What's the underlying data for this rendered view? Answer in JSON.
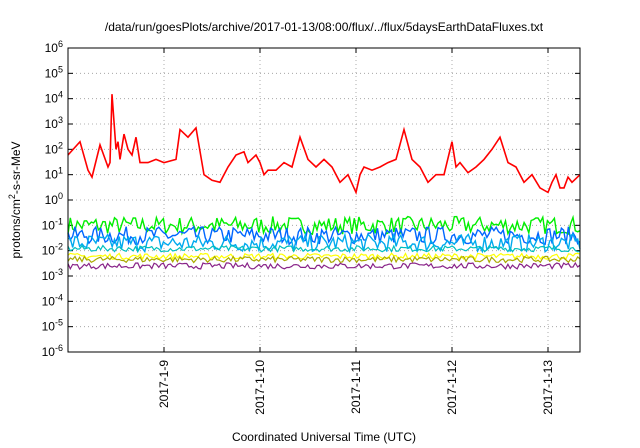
{
  "chart_data": {
    "type": "line",
    "title": "/data/run/goesPlots/archive/2017-01-13/08:00/flux/../flux/5daysEarthDataFluxes.txt",
    "xlabel": "Coordinated Universal Time (UTC)",
    "ylabel_parts": {
      "pre": "protons/cm",
      "sup": "2",
      "post": "-s-sr-MeV"
    },
    "y_scale": "log",
    "ylim": [
      1e-06,
      1000000.0
    ],
    "xlim": [
      "2017-01-08 00:00",
      "2017-01-13 08:00"
    ],
    "grid": true,
    "x_ticks": [
      "2017-1-9",
      "2017-1-10",
      "2017-1-11",
      "2017-1-12",
      "2017-1-13"
    ],
    "y_ticks": [
      {
        "base": "10",
        "exp": "-6"
      },
      {
        "base": "10",
        "exp": "-5"
      },
      {
        "base": "10",
        "exp": "-4"
      },
      {
        "base": "10",
        "exp": "-3"
      },
      {
        "base": "10",
        "exp": "-2"
      },
      {
        "base": "10",
        "exp": "-1"
      },
      {
        "base": "10",
        "exp": "0"
      },
      {
        "base": "10",
        "exp": "1"
      },
      {
        "base": "10",
        "exp": "2"
      },
      {
        "base": "10",
        "exp": "3"
      },
      {
        "base": "10",
        "exp": "4"
      },
      {
        "base": "10",
        "exp": "5"
      },
      {
        "base": "10",
        "exp": "6"
      }
    ],
    "series": [
      {
        "color": "#ff0000",
        "x": [
          "2017-01-08 00:00",
          "2017-01-08 03:00",
          "2017-01-08 05:00",
          "2017-01-08 06:00",
          "2017-01-08 08:00",
          "2017-01-08 10:00",
          "2017-01-08 10:30",
          "2017-01-08 11:00",
          "2017-01-08 12:00",
          "2017-01-08 12:30",
          "2017-01-08 13:00",
          "2017-01-08 14:00",
          "2017-01-08 15:00",
          "2017-01-08 16:00",
          "2017-01-08 17:00",
          "2017-01-08 18:00",
          "2017-01-08 20:00",
          "2017-01-08 22:00",
          "2017-01-09 00:00",
          "2017-01-09 03:00",
          "2017-01-09 04:00",
          "2017-01-09 06:00",
          "2017-01-09 08:00",
          "2017-01-09 10:00",
          "2017-01-09 12:00",
          "2017-01-09 14:00",
          "2017-01-09 16:00",
          "2017-01-09 18:00",
          "2017-01-09 20:00",
          "2017-01-09 21:00",
          "2017-01-09 23:00",
          "2017-01-10 00:00",
          "2017-01-10 01:00",
          "2017-01-10 02:00",
          "2017-01-10 04:00",
          "2017-01-10 06:00",
          "2017-01-10 08:00",
          "2017-01-10 10:00",
          "2017-01-10 12:00",
          "2017-01-10 14:00",
          "2017-01-10 16:00",
          "2017-01-10 18:00",
          "2017-01-10 20:00",
          "2017-01-10 22:00",
          "2017-01-11 00:00",
          "2017-01-11 01:00",
          "2017-01-11 02:00",
          "2017-01-11 04:00",
          "2017-01-11 06:00",
          "2017-01-11 08:00",
          "2017-01-11 10:00",
          "2017-01-11 12:00",
          "2017-01-11 14:00",
          "2017-01-11 16:00",
          "2017-01-11 18:00",
          "2017-01-11 20:00",
          "2017-01-11 22:00",
          "2017-01-12 00:00",
          "2017-01-12 01:00",
          "2017-01-12 02:00",
          "2017-01-12 04:00",
          "2017-01-12 06:00",
          "2017-01-12 08:00",
          "2017-01-12 10:00",
          "2017-01-12 12:00",
          "2017-01-12 14:00",
          "2017-01-12 16:00",
          "2017-01-12 18:00",
          "2017-01-12 20:00",
          "2017-01-12 22:00",
          "2017-01-13 00:00",
          "2017-01-13 01:00",
          "2017-01-13 02:00",
          "2017-01-13 03:00",
          "2017-01-13 04:00",
          "2017-01-13 05:00",
          "2017-01-13 06:00",
          "2017-01-13 08:00"
        ],
        "y": [
          60,
          200,
          15,
          8,
          150,
          20,
          30,
          15000,
          100,
          200,
          40,
          400,
          100,
          60,
          300,
          30,
          30,
          40,
          30,
          40,
          600,
          300,
          700,
          10,
          6,
          5,
          20,
          60,
          80,
          30,
          60,
          30,
          10,
          15,
          15,
          30,
          20,
          300,
          40,
          20,
          40,
          20,
          5,
          10,
          2,
          10,
          20,
          15,
          20,
          30,
          40,
          600,
          40,
          20,
          5,
          10,
          10,
          200,
          20,
          30,
          12,
          20,
          40,
          100,
          300,
          30,
          20,
          5,
          10,
          3,
          2,
          5,
          10,
          3,
          3,
          8,
          5,
          10
        ]
      },
      {
        "color": "#00ee00",
        "level": 0.1
      },
      {
        "color": "#0066ff",
        "level": 0.04
      },
      {
        "color": "#00aaee",
        "level": 0.02
      },
      {
        "color": "#00bfbf",
        "level": 0.012
      },
      {
        "color": "#ffff00",
        "level": 0.006
      },
      {
        "color": "#aaaa00",
        "level": 0.0045
      },
      {
        "color": "#882288",
        "level": 0.0025
      }
    ]
  }
}
